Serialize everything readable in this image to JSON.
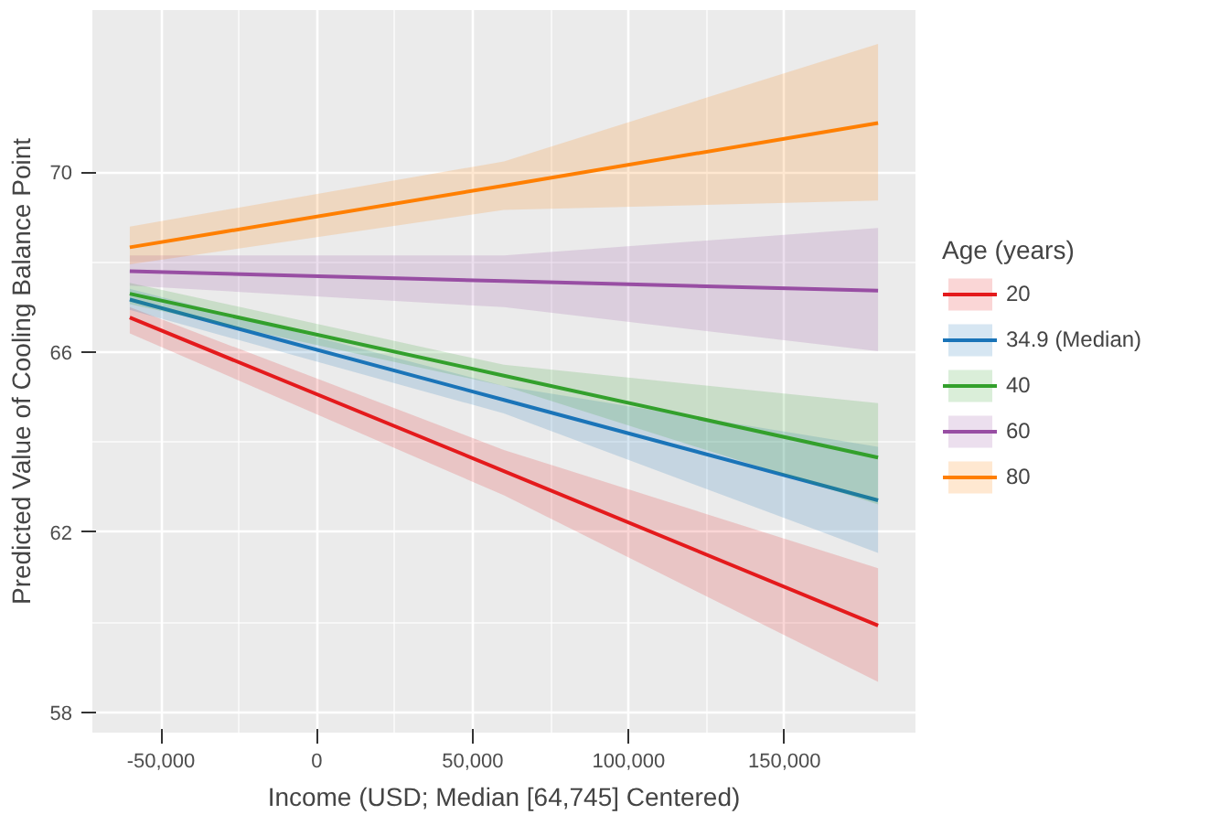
{
  "chart_data": {
    "type": "line",
    "xlabel": "Income (USD; Median [64,745] Centered)",
    "ylabel": "Predicted Value of Cooling Balance Point",
    "legend_title": "Age (years)",
    "x": [
      -60000,
      60000,
      180000
    ],
    "series": [
      {
        "name": "20",
        "color": "#e41a1c",
        "values": [
          66.77,
          63.36,
          59.93
        ],
        "lower": [
          66.42,
          62.82,
          58.68
        ],
        "upper": [
          67.0,
          63.83,
          61.2
        ]
      },
      {
        "name": "34.9 (Median)",
        "color": "#1a74b8",
        "values": [
          67.17,
          64.94,
          62.71
        ],
        "lower": [
          66.94,
          64.64,
          61.54
        ],
        "upper": [
          67.41,
          65.25,
          63.9
        ]
      },
      {
        "name": "40",
        "color": "#33a02c",
        "values": [
          67.3,
          65.48,
          63.66
        ],
        "lower": [
          67.07,
          65.25,
          62.62
        ],
        "upper": [
          67.54,
          65.72,
          64.87
        ]
      },
      {
        "name": "60",
        "color": "#984ea3",
        "values": [
          67.8,
          67.58,
          67.37
        ],
        "lower": [
          67.48,
          67.0,
          66.02
        ],
        "upper": [
          68.15,
          68.15,
          68.76
        ]
      },
      {
        "name": "80",
        "color": "#ff7f00",
        "values": [
          68.33,
          69.7,
          71.09
        ],
        "lower": [
          67.95,
          69.16,
          69.37
        ],
        "upper": [
          68.79,
          70.24,
          72.85
        ]
      }
    ],
    "xlim": [
      -72000,
      192000
    ],
    "ylim": [
      57.55,
      73.6
    ],
    "xticks": [
      {
        "value": -50000,
        "label": "-50,000"
      },
      0,
      {
        "value": 50000,
        "label": "50,000"
      },
      {
        "value": 100000,
        "label": "100,000"
      },
      {
        "value": 150000,
        "label": "150,000"
      }
    ],
    "yticks": [
      58,
      62,
      66,
      70
    ],
    "grid": true,
    "legend": "right",
    "line_style": "solid"
  }
}
